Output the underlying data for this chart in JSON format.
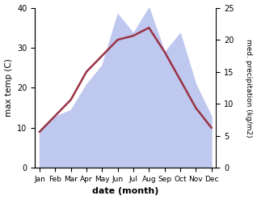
{
  "months": [
    "Jan",
    "Feb",
    "Mar",
    "Apr",
    "May",
    "Jun",
    "Jul",
    "Aug",
    "Sep",
    "Oct",
    "Nov",
    "Dec"
  ],
  "month_indices": [
    0,
    1,
    2,
    3,
    4,
    5,
    6,
    7,
    8,
    9,
    10,
    11
  ],
  "temperature": [
    9,
    13,
    17,
    24,
    28,
    32,
    33,
    35,
    29,
    22,
    15,
    10
  ],
  "precipitation": [
    5.5,
    8,
    9,
    13,
    16,
    24,
    21,
    25,
    18,
    21,
    13,
    8
  ],
  "temp_color": "#993344",
  "precip_fill_color": "#bfc8ef",
  "temp_ylim": [
    0,
    40
  ],
  "precip_ylim": [
    0,
    25
  ],
  "xlabel": "date (month)",
  "ylabel_left": "max temp (C)",
  "ylabel_right": "med. precipitation (kg/m2)",
  "temp_linewidth": 1.8,
  "yticks_left": [
    0,
    10,
    20,
    30,
    40
  ],
  "yticks_right": [
    0,
    5,
    10,
    15,
    20,
    25
  ]
}
